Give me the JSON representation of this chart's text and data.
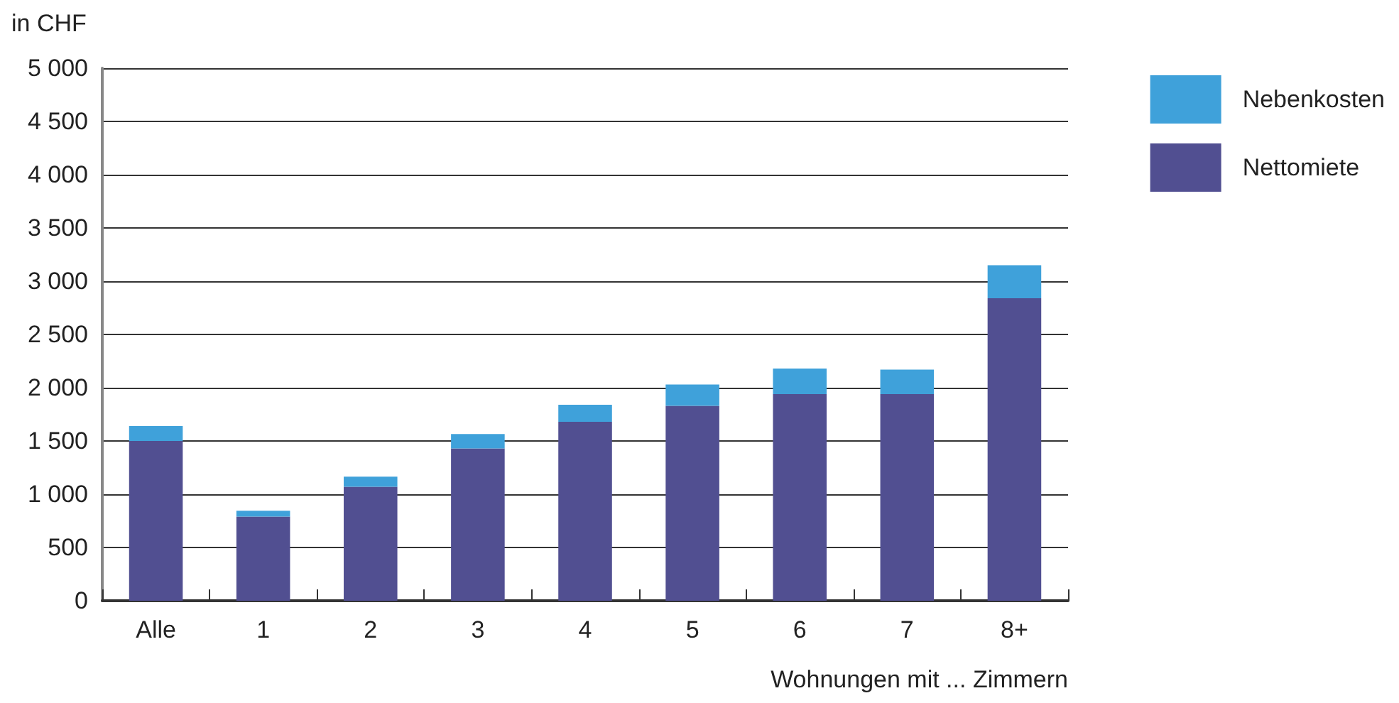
{
  "chart_data": {
    "type": "bar",
    "stacked": true,
    "ylabel": "in CHF",
    "xlabel": "Wohnungen mit ... Zimmern",
    "categories": [
      "Alle",
      "1",
      "2",
      "3",
      "4",
      "5",
      "6",
      "7",
      "8+"
    ],
    "series": [
      {
        "name": "Nettomiete",
        "color": "#514f91",
        "values": [
          1500,
          790,
          1070,
          1430,
          1680,
          1830,
          1940,
          1940,
          2840
        ]
      },
      {
        "name": "Nebenkosten",
        "color": "#3fa1da",
        "values": [
          140,
          55,
          95,
          135,
          160,
          200,
          240,
          230,
          310
        ]
      }
    ],
    "ylim": [
      0,
      5000
    ],
    "yticks": [
      0,
      500,
      {
        "value": 1000,
        "label": "1 000"
      },
      {
        "value": 1500,
        "label": "1 500"
      },
      {
        "value": 2000,
        "label": "2 000"
      },
      {
        "value": 2500,
        "label": "2 500"
      },
      {
        "value": 3000,
        "label": "3 000"
      },
      {
        "value": 3500,
        "label": "3 500"
      },
      {
        "value": 4000,
        "label": "4 000"
      },
      {
        "value": 4500,
        "label": "4 500"
      },
      {
        "value": 5000,
        "label": "5 000"
      }
    ],
    "grid": "y",
    "legend": "top right"
  }
}
